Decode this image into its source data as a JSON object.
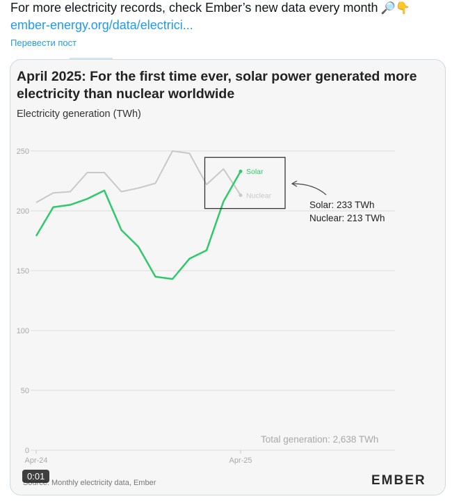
{
  "tweet": {
    "text": "For more electricity records, check Ember’s new data every month",
    "emoji": "🔎👇",
    "link": "ember-energy.org/data/electrici...",
    "translate": "Перевести пост"
  },
  "media": {
    "video_time": "0:01",
    "brand": "EMBER",
    "source": "Source: Monthly electricity data, Ember",
    "total": "Total generation: 2,638 TWh",
    "note_solar": "Solar: 233 TWh",
    "note_nuclear": "Nuclear: 213 TWh"
  },
  "chart_data": {
    "type": "line",
    "title": "April 2025: For the first time ever, solar power generated more electricity than nuclear worldwide",
    "ylabel": "Electricity generation (TWh)",
    "ylim": [
      0,
      250
    ],
    "yticks": [
      0,
      50,
      100,
      150,
      200,
      250
    ],
    "x": [
      "Apr-24",
      "May-24",
      "Jun-24",
      "Jul-24",
      "Aug-24",
      "Sep-24",
      "Oct-24",
      "Nov-24",
      "Dec-24",
      "Jan-25",
      "Feb-25",
      "Mar-25",
      "Apr-25"
    ],
    "xtick_labels": [
      "Apr-24",
      "Apr-25"
    ],
    "series": [
      {
        "name": "Solar",
        "color": "#2fc86a",
        "values": [
          179,
          203,
          205,
          210,
          217,
          184,
          170,
          145,
          143,
          160,
          167,
          208,
          233
        ]
      },
      {
        "name": "Nuclear",
        "color": "#c8c8c8",
        "values": [
          207,
          215,
          216,
          232,
          232,
          216,
          219,
          223,
          250,
          248,
          222,
          235,
          213
        ]
      }
    ],
    "grid": true
  }
}
